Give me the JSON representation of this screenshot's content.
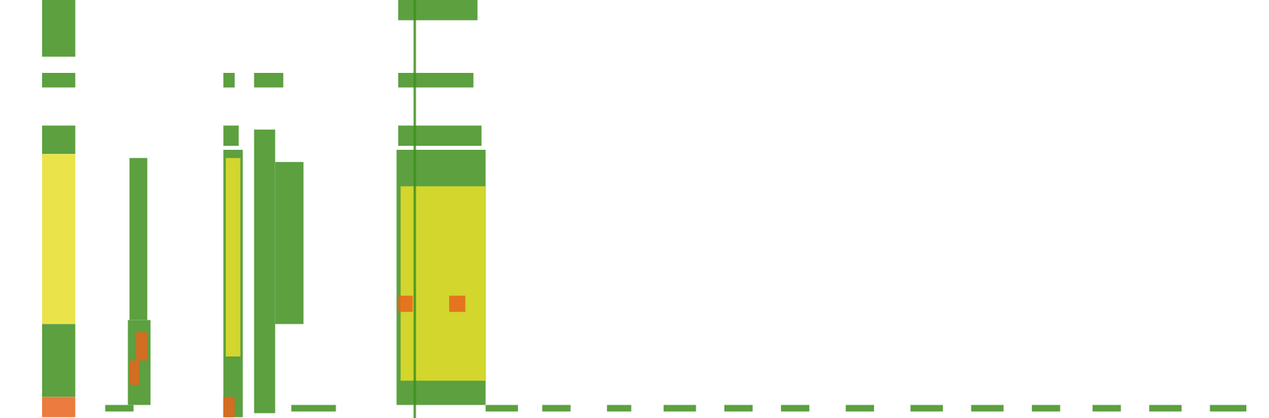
{
  "chart_data": {
    "type": "heatmap",
    "tick_labels": false,
    "xlim": [
      0,
      1568
    ],
    "ylim": [
      0,
      516
    ],
    "zlim": [
      1,
      3
    ],
    "colors": [
      "#3f8f1f",
      "#e6df2a",
      "#e8641c"
    ],
    "cells": [
      [
        52,
        93,
        446,
        516,
        1
      ],
      [
        52,
        93,
        408,
        426,
        1
      ],
      [
        52,
        93,
        326,
        361,
        1
      ],
      [
        52,
        93,
        116,
        326,
        2
      ],
      [
        52,
        93,
        26,
        116,
        1
      ],
      [
        52,
        93,
        1,
        26,
        3
      ],
      [
        160,
        182,
        121,
        321,
        1
      ],
      [
        158,
        186,
        16,
        121,
        1
      ],
      [
        168,
        182,
        71,
        106,
        3
      ],
      [
        160,
        172,
        41,
        71,
        3
      ],
      [
        276,
        300,
        1,
        331,
        1
      ],
      [
        279,
        297,
        76,
        321,
        2
      ],
      [
        276,
        290,
        1,
        26,
        3
      ],
      [
        276,
        295,
        336,
        361,
        1
      ],
      [
        276,
        290,
        408,
        426,
        1
      ],
      [
        314,
        340,
        6,
        356,
        1
      ],
      [
        340,
        375,
        116,
        316,
        1
      ],
      [
        314,
        350,
        408,
        426,
        1
      ],
      [
        490,
        600,
        16,
        331,
        1
      ],
      [
        495,
        600,
        46,
        286,
        2
      ],
      [
        492,
        510,
        131,
        151,
        3
      ],
      [
        555,
        575,
        131,
        151,
        3
      ],
      [
        492,
        595,
        336,
        361,
        1
      ],
      [
        492,
        585,
        408,
        426,
        1
      ],
      [
        492,
        590,
        491,
        516,
        1
      ],
      [
        511,
        514,
        0,
        516,
        1
      ],
      [
        130,
        165,
        8,
        16,
        1
      ],
      [
        360,
        415,
        8,
        16,
        1
      ],
      [
        600,
        640,
        8,
        16,
        1
      ],
      [
        670,
        705,
        8,
        16,
        1
      ],
      [
        750,
        780,
        8,
        16,
        1
      ],
      [
        820,
        860,
        8,
        16,
        1
      ],
      [
        895,
        930,
        8,
        16,
        1
      ],
      [
        965,
        1000,
        8,
        16,
        1
      ],
      [
        1045,
        1080,
        8,
        16,
        1
      ],
      [
        1125,
        1165,
        8,
        16,
        1
      ],
      [
        1200,
        1240,
        8,
        16,
        1
      ],
      [
        1275,
        1310,
        8,
        16,
        1
      ],
      [
        1350,
        1385,
        8,
        16,
        1
      ],
      [
        1420,
        1460,
        8,
        16,
        1
      ],
      [
        1495,
        1540,
        8,
        16,
        1
      ]
    ]
  }
}
